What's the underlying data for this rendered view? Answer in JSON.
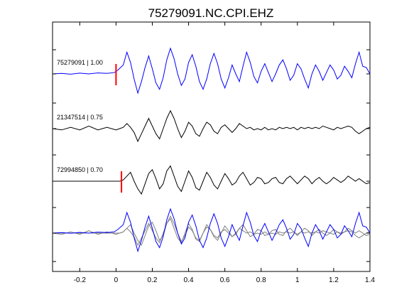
{
  "chart_data": {
    "type": "line",
    "title": "75279091.NC.CPI.EHZ",
    "xlabel": "",
    "ylabel": "",
    "xlim": [
      -0.35,
      1.4
    ],
    "x_ticks": [
      -0.2,
      0,
      0.2,
      0.4,
      0.6,
      0.8,
      1,
      1.2,
      1.4
    ],
    "x_tick_labels": [
      "-0.2",
      "0",
      "0.2",
      "0.4",
      "0.6",
      "0.8",
      "1",
      "1.2",
      "1.4"
    ],
    "grid": false,
    "pick_marker_color": "#ff0000",
    "traces": [
      {
        "label": "75279091 | 1.00",
        "color": "#0000ff",
        "pick_time": 0.0,
        "points": [
          [
            -0.35,
            0.0
          ],
          [
            -0.3,
            0.02
          ],
          [
            -0.25,
            -0.01
          ],
          [
            -0.2,
            0.03
          ],
          [
            -0.15,
            0.0
          ],
          [
            -0.1,
            0.04
          ],
          [
            -0.05,
            0.02
          ],
          [
            -0.01,
            0.05
          ],
          [
            0.01,
            0.15
          ],
          [
            0.04,
            0.35
          ],
          [
            0.06,
            0.85
          ],
          [
            0.08,
            0.45
          ],
          [
            0.1,
            -0.2
          ],
          [
            0.12,
            -0.75
          ],
          [
            0.14,
            -0.3
          ],
          [
            0.16,
            0.25
          ],
          [
            0.18,
            0.7
          ],
          [
            0.2,
            0.2
          ],
          [
            0.22,
            -0.35
          ],
          [
            0.24,
            -0.6
          ],
          [
            0.26,
            -0.15
          ],
          [
            0.28,
            0.55
          ],
          [
            0.3,
            1.0
          ],
          [
            0.32,
            0.6
          ],
          [
            0.34,
            0.0
          ],
          [
            0.36,
            -0.45
          ],
          [
            0.38,
            -0.2
          ],
          [
            0.4,
            0.45
          ],
          [
            0.42,
            0.75
          ],
          [
            0.44,
            0.3
          ],
          [
            0.46,
            -0.3
          ],
          [
            0.48,
            -0.6
          ],
          [
            0.5,
            -0.2
          ],
          [
            0.52,
            0.4
          ],
          [
            0.54,
            0.8
          ],
          [
            0.56,
            0.4
          ],
          [
            0.58,
            -0.2
          ],
          [
            0.6,
            -0.55
          ],
          [
            0.62,
            -0.15
          ],
          [
            0.64,
            0.35
          ],
          [
            0.66,
            0.0
          ],
          [
            0.68,
            -0.3
          ],
          [
            0.7,
            0.3
          ],
          [
            0.72,
            0.85
          ],
          [
            0.74,
            0.45
          ],
          [
            0.76,
            -0.1
          ],
          [
            0.78,
            -0.35
          ],
          [
            0.8,
            0.1
          ],
          [
            0.82,
            0.4
          ],
          [
            0.84,
            0.05
          ],
          [
            0.86,
            -0.3
          ],
          [
            0.88,
            0.0
          ],
          [
            0.9,
            0.35
          ],
          [
            0.92,
            0.55
          ],
          [
            0.94,
            0.2
          ],
          [
            0.96,
            -0.25
          ],
          [
            0.98,
            -0.05
          ],
          [
            1.0,
            0.4
          ],
          [
            1.02,
            0.2
          ],
          [
            1.04,
            -0.2
          ],
          [
            1.06,
            -0.55
          ],
          [
            1.08,
            0.0
          ],
          [
            1.1,
            0.35
          ],
          [
            1.12,
            0.1
          ],
          [
            1.14,
            -0.25
          ],
          [
            1.16,
            0.05
          ],
          [
            1.18,
            0.35
          ],
          [
            1.2,
            0.15
          ],
          [
            1.22,
            -0.2
          ],
          [
            1.24,
            -0.05
          ],
          [
            1.26,
            0.3
          ],
          [
            1.28,
            0.1
          ],
          [
            1.3,
            -0.15
          ],
          [
            1.32,
            0.4
          ],
          [
            1.34,
            0.85
          ],
          [
            1.36,
            0.3
          ],
          [
            1.38,
            0.25
          ],
          [
            1.4,
            0.0
          ]
        ]
      },
      {
        "label": "21347514 | 0.75",
        "color": "#000000",
        "points": [
          [
            -0.35,
            0.0
          ],
          [
            -0.3,
            -0.05
          ],
          [
            -0.25,
            0.05
          ],
          [
            -0.2,
            -0.05
          ],
          [
            -0.15,
            0.1
          ],
          [
            -0.1,
            -0.05
          ],
          [
            -0.05,
            0.05
          ],
          [
            0.0,
            -0.05
          ],
          [
            0.02,
            0.0
          ],
          [
            0.04,
            0.05
          ],
          [
            0.06,
            0.2
          ],
          [
            0.08,
            0.05
          ],
          [
            0.1,
            -0.15
          ],
          [
            0.12,
            -0.5
          ],
          [
            0.14,
            -0.2
          ],
          [
            0.16,
            0.1
          ],
          [
            0.18,
            0.4
          ],
          [
            0.2,
            0.1
          ],
          [
            0.22,
            -0.2
          ],
          [
            0.24,
            -0.4
          ],
          [
            0.26,
            0.0
          ],
          [
            0.28,
            0.4
          ],
          [
            0.3,
            0.7
          ],
          [
            0.32,
            0.4
          ],
          [
            0.34,
            0.0
          ],
          [
            0.36,
            -0.35
          ],
          [
            0.38,
            -0.1
          ],
          [
            0.4,
            0.25
          ],
          [
            0.42,
            0.1
          ],
          [
            0.44,
            -0.2
          ],
          [
            0.46,
            -0.3
          ],
          [
            0.48,
            0.0
          ],
          [
            0.5,
            0.25
          ],
          [
            0.52,
            0.15
          ],
          [
            0.54,
            -0.1
          ],
          [
            0.56,
            -0.2
          ],
          [
            0.58,
            0.05
          ],
          [
            0.6,
            0.15
          ],
          [
            0.62,
            0.0
          ],
          [
            0.64,
            -0.15
          ],
          [
            0.66,
            0.0
          ],
          [
            0.68,
            0.2
          ],
          [
            0.7,
            0.1
          ],
          [
            0.72,
            0.0
          ],
          [
            0.74,
            0.05
          ],
          [
            0.76,
            -0.05
          ],
          [
            0.78,
            0.0
          ],
          [
            0.8,
            -0.05
          ],
          [
            0.82,
            0.05
          ],
          [
            0.84,
            -0.05
          ],
          [
            0.86,
            0.0
          ],
          [
            0.88,
            -0.05
          ],
          [
            0.9,
            0.05
          ],
          [
            0.92,
            0.0
          ],
          [
            0.94,
            0.05
          ],
          [
            0.96,
            0.0
          ],
          [
            0.98,
            0.05
          ],
          [
            1.0,
            -0.05
          ],
          [
            1.02,
            0.05
          ],
          [
            1.04,
            0.0
          ],
          [
            1.06,
            0.05
          ],
          [
            1.08,
            0.0
          ],
          [
            1.1,
            0.05
          ],
          [
            1.12,
            0.0
          ],
          [
            1.14,
            0.1
          ],
          [
            1.16,
            0.05
          ],
          [
            1.18,
            0.0
          ],
          [
            1.2,
            -0.05
          ],
          [
            1.22,
            0.05
          ],
          [
            1.24,
            0.0
          ],
          [
            1.26,
            0.05
          ],
          [
            1.28,
            0.1
          ],
          [
            1.3,
            0.05
          ],
          [
            1.32,
            -0.1
          ],
          [
            1.34,
            -0.2
          ],
          [
            1.36,
            -0.1
          ],
          [
            1.38,
            0.0
          ],
          [
            1.4,
            0.05
          ]
        ]
      },
      {
        "label": "72994850 | 0.70",
        "color": "#000000",
        "pick_time": 0.03,
        "points": [
          [
            -0.35,
            0.0
          ],
          [
            -0.3,
            0.0
          ],
          [
            -0.25,
            0.0
          ],
          [
            -0.2,
            0.0
          ],
          [
            -0.15,
            0.0
          ],
          [
            -0.1,
            0.0
          ],
          [
            -0.05,
            0.0
          ],
          [
            0.0,
            0.0
          ],
          [
            0.02,
            0.0
          ],
          [
            0.04,
            0.05
          ],
          [
            0.06,
            0.2
          ],
          [
            0.08,
            0.35
          ],
          [
            0.1,
            0.0
          ],
          [
            0.12,
            -0.3
          ],
          [
            0.14,
            -0.5
          ],
          [
            0.16,
            -0.1
          ],
          [
            0.18,
            0.3
          ],
          [
            0.2,
            0.45
          ],
          [
            0.22,
            0.1
          ],
          [
            0.24,
            -0.3
          ],
          [
            0.26,
            -0.1
          ],
          [
            0.28,
            0.4
          ],
          [
            0.3,
            0.6
          ],
          [
            0.32,
            0.2
          ],
          [
            0.34,
            -0.2
          ],
          [
            0.36,
            -0.4
          ],
          [
            0.38,
            0.0
          ],
          [
            0.4,
            0.4
          ],
          [
            0.42,
            0.15
          ],
          [
            0.44,
            -0.25
          ],
          [
            0.46,
            -0.35
          ],
          [
            0.48,
            0.0
          ],
          [
            0.5,
            0.35
          ],
          [
            0.52,
            0.15
          ],
          [
            0.54,
            -0.15
          ],
          [
            0.56,
            -0.3
          ],
          [
            0.58,
            0.0
          ],
          [
            0.6,
            0.3
          ],
          [
            0.62,
            0.1
          ],
          [
            0.64,
            -0.15
          ],
          [
            0.66,
            -0.05
          ],
          [
            0.68,
            0.2
          ],
          [
            0.7,
            0.35
          ],
          [
            0.72,
            0.1
          ],
          [
            0.74,
            -0.15
          ],
          [
            0.76,
            -0.05
          ],
          [
            0.78,
            0.15
          ],
          [
            0.8,
            0.1
          ],
          [
            0.82,
            -0.1
          ],
          [
            0.84,
            -0.05
          ],
          [
            0.86,
            0.1
          ],
          [
            0.88,
            0.15
          ],
          [
            0.9,
            -0.05
          ],
          [
            0.92,
            -0.1
          ],
          [
            0.94,
            0.1
          ],
          [
            0.96,
            0.2
          ],
          [
            0.98,
            0.05
          ],
          [
            1.0,
            -0.1
          ],
          [
            1.02,
            0.05
          ],
          [
            1.04,
            0.2
          ],
          [
            1.06,
            0.1
          ],
          [
            1.08,
            -0.1
          ],
          [
            1.1,
            0.05
          ],
          [
            1.12,
            0.15
          ],
          [
            1.14,
            0.0
          ],
          [
            1.16,
            -0.1
          ],
          [
            1.18,
            0.0
          ],
          [
            1.2,
            0.15
          ],
          [
            1.22,
            0.05
          ],
          [
            1.24,
            -0.05
          ],
          [
            1.26,
            0.05
          ],
          [
            1.28,
            0.2
          ],
          [
            1.3,
            0.1
          ],
          [
            1.32,
            0.0
          ],
          [
            1.34,
            0.1
          ],
          [
            1.36,
            0.0
          ],
          [
            1.38,
            -0.1
          ],
          [
            1.4,
            -0.05
          ]
        ]
      }
    ],
    "overlay": {
      "description_color_comparison": "#808080",
      "comparison_color": "#808080"
    }
  }
}
